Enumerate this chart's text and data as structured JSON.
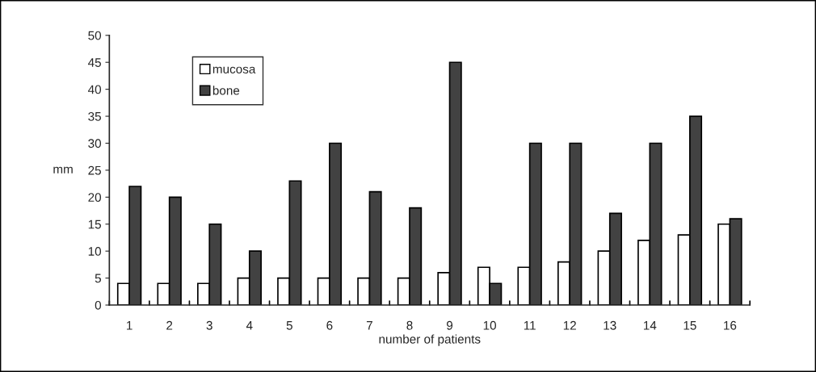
{
  "chart_data": {
    "type": "bar",
    "xlabel": "number of patients",
    "ylabel": "mm",
    "categories": [
      "1",
      "2",
      "3",
      "4",
      "5",
      "6",
      "7",
      "8",
      "9",
      "10",
      "11",
      "12",
      "13",
      "14",
      "15",
      "16"
    ],
    "series": [
      {
        "name": "mucosa",
        "color": "#ffffff",
        "values": [
          4,
          4,
          4,
          5,
          5,
          5,
          5,
          5,
          6,
          7,
          7,
          8,
          10,
          12,
          13,
          15
        ]
      },
      {
        "name": "bone",
        "color": "#424242",
        "values": [
          22,
          20,
          15,
          10,
          23,
          30,
          21,
          18,
          45,
          4,
          30,
          30,
          17,
          30,
          35,
          16
        ]
      }
    ],
    "ylim": [
      0,
      50
    ],
    "yticks": [
      0,
      5,
      10,
      15,
      20,
      25,
      30,
      35,
      40,
      45,
      50
    ],
    "grid": false,
    "legend": "top left"
  }
}
